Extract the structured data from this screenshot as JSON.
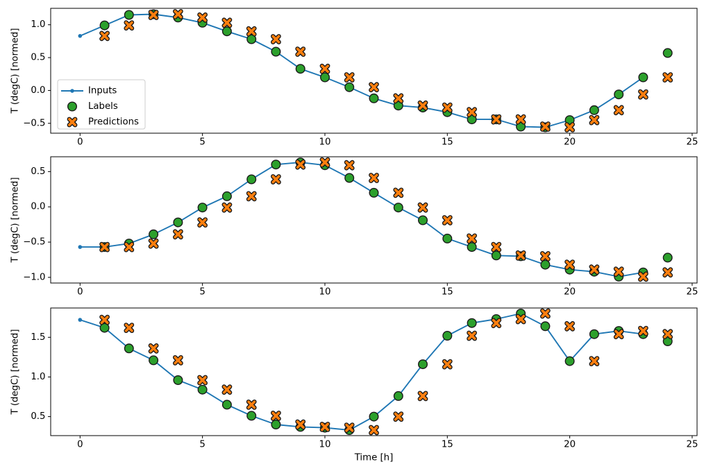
{
  "figure": {
    "background": "#ffffff",
    "xlabel": "Time [h]",
    "ylabel": "T (degC) [normed]",
    "colors": {
      "inputs": "#1f77b4",
      "labels": "#2ca02c",
      "predictions": "#ff7f0e",
      "marker_edge": "#1a1a1a",
      "spine": "#000000",
      "legend_border": "#cccccc"
    },
    "legend": {
      "entries": [
        {
          "label": "Inputs",
          "marker": "line-dot",
          "color": "#1f77b4"
        },
        {
          "label": "Labels",
          "marker": "circle",
          "color": "#2ca02c"
        },
        {
          "label": "Predictions",
          "marker": "x",
          "color": "#ff7f0e"
        }
      ]
    }
  },
  "chart_data": [
    {
      "type": "line",
      "title": "",
      "xlabel": "",
      "ylabel": "T (degC) [normed]",
      "legend": true,
      "legend_position": "center-left",
      "grid": false,
      "xlim": [
        -1.2,
        25.2
      ],
      "ylim": [
        -0.65,
        1.25
      ],
      "xticks": {
        "values": [
          0,
          5,
          10,
          15,
          20,
          25
        ],
        "labels": [
          "0",
          "5",
          "10",
          "15",
          "20",
          "25"
        ]
      },
      "yticks": {
        "values": [
          1.0,
          0.5,
          0.0,
          -0.5
        ],
        "labels": [
          "1.0",
          "0.5",
          "0.0",
          "−0.5"
        ]
      },
      "series": [
        {
          "name": "Inputs",
          "type": "line",
          "marker": "dot",
          "color": "#1f77b4",
          "x": [
            0,
            1,
            2,
            3,
            4,
            5,
            6,
            7,
            8,
            9,
            10,
            11,
            12,
            13,
            14,
            15,
            16,
            17,
            18,
            19,
            20,
            21,
            22,
            23
          ],
          "y": [
            0.83,
            0.99,
            1.15,
            1.16,
            1.11,
            1.03,
            0.9,
            0.78,
            0.59,
            0.33,
            0.2,
            0.05,
            -0.12,
            -0.23,
            -0.26,
            -0.33,
            -0.44,
            -0.44,
            -0.55,
            -0.56,
            -0.45,
            -0.3,
            -0.06,
            0.2
          ]
        },
        {
          "name": "Labels",
          "type": "scatter",
          "marker": "circle",
          "color": "#2ca02c",
          "edgecolor": "#1a1a1a",
          "x": [
            1,
            2,
            3,
            4,
            5,
            6,
            7,
            8,
            9,
            10,
            11,
            12,
            13,
            14,
            15,
            16,
            17,
            18,
            19,
            20,
            21,
            22,
            23,
            24
          ],
          "y": [
            0.99,
            1.15,
            1.16,
            1.11,
            1.03,
            0.9,
            0.78,
            0.59,
            0.33,
            0.2,
            0.05,
            -0.12,
            -0.23,
            -0.26,
            -0.33,
            -0.44,
            -0.44,
            -0.55,
            -0.56,
            -0.45,
            -0.3,
            -0.06,
            0.2,
            0.57
          ]
        },
        {
          "name": "Predictions",
          "type": "scatter",
          "marker": "X",
          "color": "#ff7f0e",
          "edgecolor": "#1a1a1a",
          "x": [
            1,
            2,
            3,
            4,
            5,
            6,
            7,
            8,
            9,
            10,
            11,
            12,
            13,
            14,
            15,
            16,
            17,
            18,
            19,
            20,
            21,
            22,
            23,
            24
          ],
          "y": [
            0.83,
            0.99,
            1.15,
            1.16,
            1.11,
            1.03,
            0.9,
            0.78,
            0.59,
            0.33,
            0.2,
            0.05,
            -0.12,
            -0.23,
            -0.26,
            -0.33,
            -0.44,
            -0.44,
            -0.55,
            -0.56,
            -0.45,
            -0.3,
            -0.06,
            0.2
          ]
        }
      ]
    },
    {
      "type": "line",
      "title": "",
      "xlabel": "",
      "ylabel": "T (degC) [normed]",
      "legend": false,
      "grid": false,
      "xlim": [
        -1.2,
        25.2
      ],
      "ylim": [
        -1.08,
        0.71
      ],
      "xticks": {
        "values": [
          0,
          5,
          10,
          15,
          20,
          25
        ],
        "labels": [
          "0",
          "5",
          "10",
          "15",
          "20",
          "25"
        ]
      },
      "yticks": {
        "values": [
          0.5,
          0.0,
          -0.5,
          -1.0
        ],
        "labels": [
          "0.5",
          "0.0",
          "−0.5",
          "−1.0"
        ]
      },
      "series": [
        {
          "name": "Inputs",
          "type": "line",
          "marker": "dot",
          "color": "#1f77b4",
          "x": [
            0,
            1,
            2,
            3,
            4,
            5,
            6,
            7,
            8,
            9,
            10,
            11,
            12,
            13,
            14,
            15,
            16,
            17,
            18,
            19,
            20,
            21,
            22,
            23
          ],
          "y": [
            -0.57,
            -0.57,
            -0.52,
            -0.39,
            -0.22,
            -0.01,
            0.15,
            0.39,
            0.6,
            0.63,
            0.59,
            0.41,
            0.2,
            -0.01,
            -0.19,
            -0.45,
            -0.57,
            -0.69,
            -0.7,
            -0.82,
            -0.89,
            -0.92,
            -0.99,
            -0.93
          ]
        },
        {
          "name": "Labels",
          "type": "scatter",
          "marker": "circle",
          "color": "#2ca02c",
          "edgecolor": "#1a1a1a",
          "x": [
            1,
            2,
            3,
            4,
            5,
            6,
            7,
            8,
            9,
            10,
            11,
            12,
            13,
            14,
            15,
            16,
            17,
            18,
            19,
            20,
            21,
            22,
            23,
            24
          ],
          "y": [
            -0.57,
            -0.52,
            -0.39,
            -0.22,
            -0.01,
            0.15,
            0.39,
            0.6,
            0.63,
            0.59,
            0.41,
            0.2,
            -0.01,
            -0.19,
            -0.45,
            -0.57,
            -0.69,
            -0.7,
            -0.82,
            -0.89,
            -0.92,
            -0.99,
            -0.93,
            -0.72
          ]
        },
        {
          "name": "Predictions",
          "type": "scatter",
          "marker": "X",
          "color": "#ff7f0e",
          "edgecolor": "#1a1a1a",
          "x": [
            1,
            2,
            3,
            4,
            5,
            6,
            7,
            8,
            9,
            10,
            11,
            12,
            13,
            14,
            15,
            16,
            17,
            18,
            19,
            20,
            21,
            22,
            23,
            24
          ],
          "y": [
            -0.57,
            -0.57,
            -0.52,
            -0.39,
            -0.22,
            -0.01,
            0.15,
            0.39,
            0.6,
            0.63,
            0.59,
            0.41,
            0.2,
            -0.01,
            -0.19,
            -0.45,
            -0.57,
            -0.69,
            -0.7,
            -0.82,
            -0.89,
            -0.92,
            -0.99,
            -0.93
          ]
        }
      ]
    },
    {
      "type": "line",
      "title": "",
      "xlabel": "Time [h]",
      "ylabel": "T (degC) [normed]",
      "legend": false,
      "grid": false,
      "xlim": [
        -1.2,
        25.2
      ],
      "ylim": [
        0.26,
        1.87
      ],
      "xticks": {
        "values": [
          0,
          5,
          10,
          15,
          20,
          25
        ],
        "labels": [
          "0",
          "5",
          "10",
          "15",
          "20",
          "25"
        ]
      },
      "yticks": {
        "values": [
          1.5,
          1.0,
          0.5
        ],
        "labels": [
          "1.5",
          "1.0",
          "0.5"
        ]
      },
      "series": [
        {
          "name": "Inputs",
          "type": "line",
          "marker": "dot",
          "color": "#1f77b4",
          "x": [
            0,
            1,
            2,
            3,
            4,
            5,
            6,
            7,
            8,
            9,
            10,
            11,
            12,
            13,
            14,
            15,
            16,
            17,
            18,
            19,
            20,
            21,
            22,
            23
          ],
          "y": [
            1.72,
            1.62,
            1.36,
            1.21,
            0.96,
            0.84,
            0.65,
            0.51,
            0.4,
            0.37,
            0.36,
            0.33,
            0.5,
            0.76,
            1.16,
            1.52,
            1.68,
            1.73,
            1.8,
            1.64,
            1.2,
            1.54,
            1.58,
            1.54
          ]
        },
        {
          "name": "Labels",
          "type": "scatter",
          "marker": "circle",
          "color": "#2ca02c",
          "edgecolor": "#1a1a1a",
          "x": [
            1,
            2,
            3,
            4,
            5,
            6,
            7,
            8,
            9,
            10,
            11,
            12,
            13,
            14,
            15,
            16,
            17,
            18,
            19,
            20,
            21,
            22,
            23,
            24
          ],
          "y": [
            1.62,
            1.36,
            1.21,
            0.96,
            0.84,
            0.65,
            0.51,
            0.4,
            0.37,
            0.36,
            0.33,
            0.5,
            0.76,
            1.16,
            1.52,
            1.68,
            1.73,
            1.8,
            1.64,
            1.2,
            1.54,
            1.58,
            1.54,
            1.45
          ]
        },
        {
          "name": "Predictions",
          "type": "scatter",
          "marker": "X",
          "color": "#ff7f0e",
          "edgecolor": "#1a1a1a",
          "x": [
            1,
            2,
            3,
            4,
            5,
            6,
            7,
            8,
            9,
            10,
            11,
            12,
            13,
            14,
            15,
            16,
            17,
            18,
            19,
            20,
            21,
            22,
            23,
            24
          ],
          "y": [
            1.72,
            1.62,
            1.36,
            1.21,
            0.96,
            0.84,
            0.65,
            0.51,
            0.4,
            0.37,
            0.36,
            0.33,
            0.5,
            0.76,
            1.16,
            1.52,
            1.68,
            1.73,
            1.8,
            1.64,
            1.2,
            1.54,
            1.58,
            1.54
          ]
        }
      ]
    }
  ]
}
